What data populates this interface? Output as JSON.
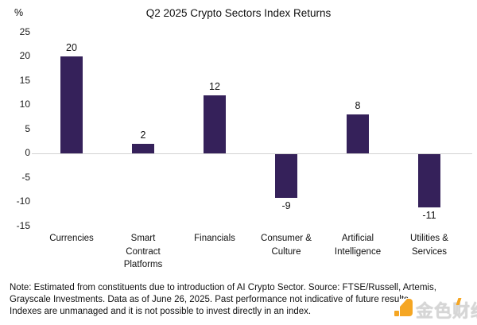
{
  "title": "Q2 2025 Crypto Sectors Index Returns",
  "chart_data": {
    "type": "bar",
    "categories": [
      "Currencies",
      "Smart Contract Platforms",
      "Financials",
      "Consumer & Culture",
      "Artificial Intelligence",
      "Utilities & Services"
    ],
    "category_lines": [
      [
        "Currencies"
      ],
      [
        "Smart",
        "Contract",
        "Platforms"
      ],
      [
        "Financials"
      ],
      [
        "Consumer &",
        "Culture"
      ],
      [
        "Artificial",
        "Intelligence"
      ],
      [
        "Utilities &",
        "Services"
      ]
    ],
    "values": [
      20,
      2,
      12,
      -9,
      8,
      -11
    ],
    "data_labels": [
      "20",
      "2",
      "12",
      "-9",
      "8",
      "-11"
    ],
    "title": "Q2 2025 Crypto Sectors Index Returns",
    "xlabel": "",
    "ylabel": "%",
    "ylim": [
      -15,
      25
    ],
    "yticks": [
      25,
      20,
      15,
      10,
      5,
      0,
      -5,
      -10,
      -15
    ],
    "bar_color": "#35215A",
    "zero_line_color": "#d2d2d2",
    "grid": false,
    "legend": "none"
  },
  "note": {
    "lines": [
      "Note: Estimated from constituents due to introduction of AI Crypto Sector. Source: FTSE/Russell, Artemis,",
      "Grayscale Investments. Data as of June 26, 2025. Past performance not indicative of future results.",
      "Indexes are unmanaged and it is not possible to invest directly in an index."
    ]
  },
  "watermark": {
    "text": "金色财经",
    "logo_color": "#F5A623",
    "text_color": "#D6D6D6"
  }
}
